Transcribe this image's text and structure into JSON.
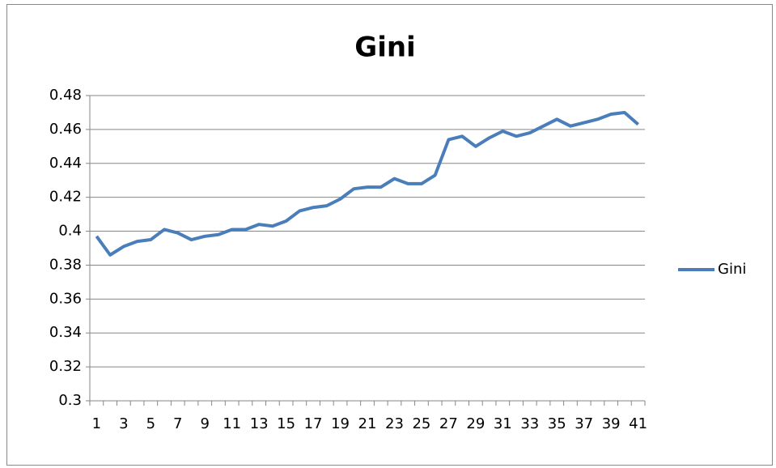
{
  "chart_data": {
    "type": "line",
    "title": "Gini",
    "categories": [
      1,
      null,
      3,
      null,
      5,
      null,
      7,
      null,
      9,
      null,
      11,
      null,
      13,
      null,
      15,
      null,
      17,
      null,
      19,
      null,
      21,
      null,
      23,
      null,
      25,
      null,
      27,
      null,
      29,
      null,
      31,
      null,
      33,
      null,
      35,
      null,
      37,
      null,
      39,
      null,
      41
    ],
    "series": [
      {
        "name": "Gini",
        "color": "#4a7ebb",
        "values": [
          0.397,
          0.386,
          0.391,
          0.394,
          0.395,
          0.401,
          0.399,
          0.395,
          0.397,
          0.398,
          0.401,
          0.401,
          0.404,
          0.403,
          0.406,
          0.412,
          0.414,
          0.415,
          0.419,
          0.425,
          0.426,
          0.426,
          0.431,
          0.428,
          0.428,
          0.433,
          0.454,
          0.456,
          0.45,
          0.455,
          0.459,
          0.456,
          0.458,
          0.462,
          0.466,
          0.462,
          0.464,
          0.466,
          0.469,
          0.47,
          0.463
        ]
      }
    ],
    "ylim": [
      0.3,
      0.48
    ],
    "yticks": [
      0.3,
      0.32,
      0.34,
      0.36,
      0.38,
      0.4,
      0.42,
      0.44,
      0.46,
      0.48
    ],
    "grid": true,
    "legend": "right"
  }
}
